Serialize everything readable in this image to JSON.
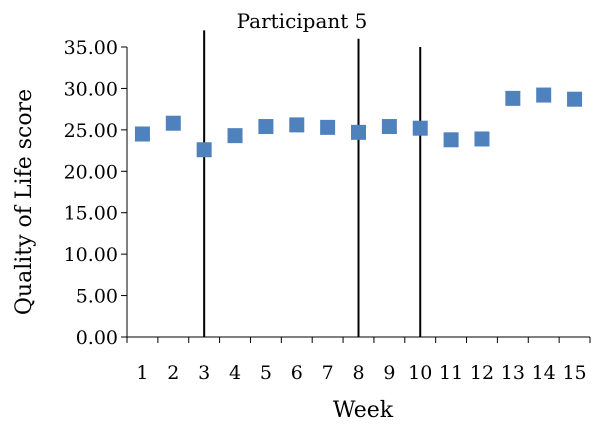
{
  "chart_data": {
    "type": "scatter",
    "title": "Participant 5",
    "xlabel": "Week",
    "ylabel": "Quality of Life score",
    "categories": [
      "1",
      "2",
      "3",
      "4",
      "5",
      "6",
      "7",
      "8",
      "9",
      "10",
      "11",
      "12",
      "13",
      "14",
      "15"
    ],
    "y_ticks": [
      "0.00",
      "5.00",
      "10.00",
      "15.00",
      "20.00",
      "25.00",
      "30.00",
      "35.00"
    ],
    "ylim": [
      0,
      35
    ],
    "grid": false,
    "legend": "none",
    "series": [
      {
        "values": [
          24.5,
          25.8,
          22.6,
          24.3,
          25.4,
          25.6,
          25.3,
          24.7,
          25.4,
          25.2,
          23.8,
          23.9,
          28.8,
          29.2,
          28.7
        ],
        "color": "#4f81bd",
        "marker": "square"
      }
    ],
    "phase_lines": [
      {
        "after_week": 2.5,
        "top": 37
      },
      {
        "after_week": 7.5,
        "top": 36
      },
      {
        "after_week": 9.5,
        "top": 35
      }
    ]
  }
}
